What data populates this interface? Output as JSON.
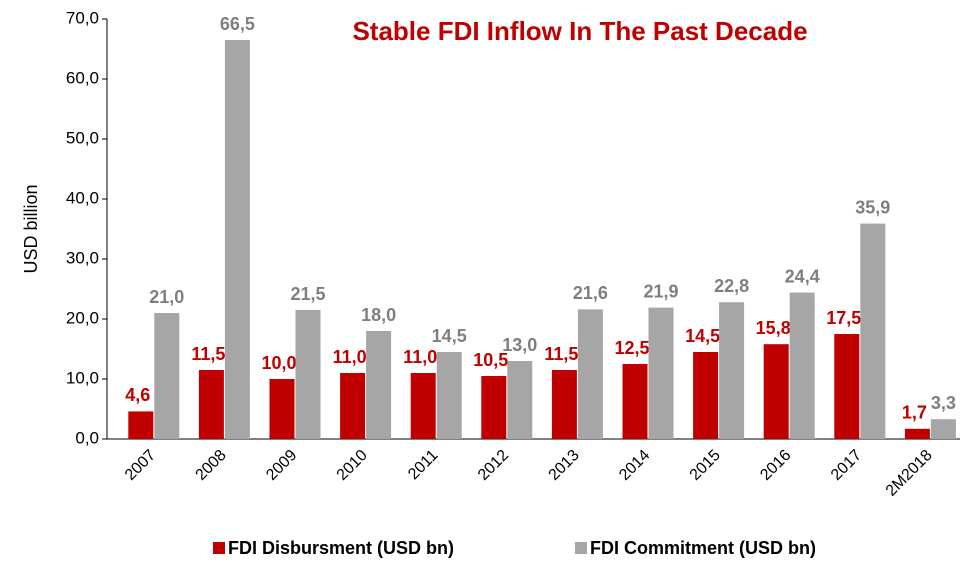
{
  "chart_data": {
    "type": "bar",
    "title": "Stable FDI Inflow In The Past Decade",
    "y_label": "USD billion",
    "categories": [
      "2007",
      "2008",
      "2009",
      "2010",
      "2011",
      "2012",
      "2013",
      "2014",
      "2015",
      "2016",
      "2017",
      "2M2018"
    ],
    "series": [
      {
        "name": "FDI Disbursment (USD bn)",
        "color": "#c00000",
        "values": [
          4.6,
          11.5,
          10.0,
          11.0,
          11.0,
          10.5,
          11.5,
          12.5,
          14.5,
          15.8,
          17.5,
          1.7
        ],
        "value_labels": [
          "4,6",
          "11,5",
          "10,0",
          "11,0",
          "11,0",
          "10,5",
          "11,5",
          "12,5",
          "14,5",
          "15,8",
          "17,5",
          "1,7"
        ]
      },
      {
        "name": "FDI Commitment (USD bn)",
        "color": "#a6a6a6",
        "values": [
          21.0,
          66.5,
          21.5,
          18.0,
          14.5,
          13.0,
          21.6,
          21.9,
          22.8,
          24.4,
          35.9,
          3.3
        ],
        "value_labels": [
          "21,0",
          "66,5",
          "21,5",
          "18,0",
          "14,5",
          "13,0",
          "21,6",
          "21,9",
          "22,8",
          "24,4",
          "35,9",
          "3,3"
        ]
      }
    ],
    "ylim": [
      0,
      70
    ],
    "yticks": [
      {
        "value": 0,
        "label": "0,0"
      },
      {
        "value": 10,
        "label": "10,0"
      },
      {
        "value": 20,
        "label": "20,0"
      },
      {
        "value": 30,
        "label": "30,0"
      },
      {
        "value": 40,
        "label": "40,0"
      },
      {
        "value": 50,
        "label": "50,0"
      },
      {
        "value": 60,
        "label": "60,0"
      },
      {
        "value": 70,
        "label": "70,0"
      }
    ],
    "grid": false,
    "legend": "bottom"
  }
}
